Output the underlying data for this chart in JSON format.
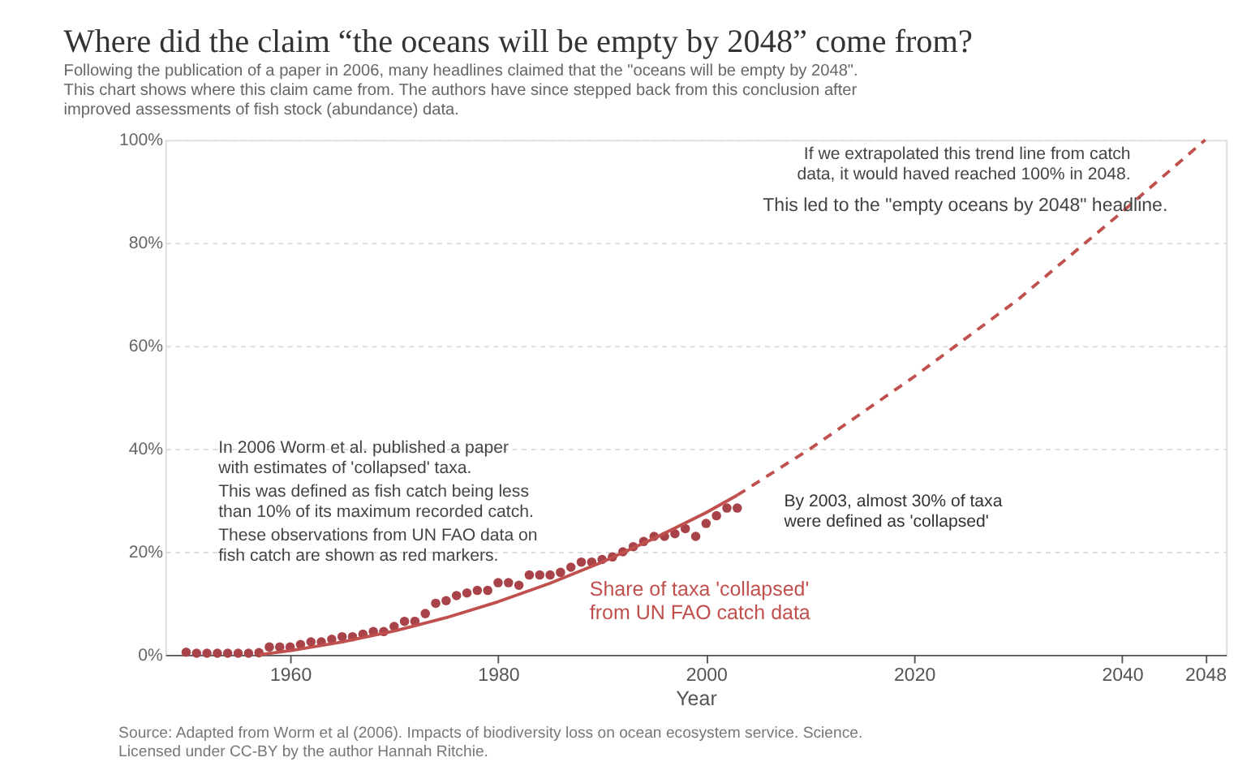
{
  "chart_data": {
    "type": "line",
    "title": "Where did the claim “the oceans will be empty by 2048” come from?",
    "subtitle": "Following the publication of a paper in 2006, many headlines claimed that the \"oceans will be empty by 2048\".\nThis chart shows where this claim came from. The authors have since stepped back from this conclusion after\nimproved assessments of fish stock (abundance) data.",
    "xlabel": "Year",
    "xlim": [
      1948,
      2050
    ],
    "xticks": [
      1960,
      1980,
      2000,
      2020,
      2040,
      2048
    ],
    "ylim": [
      0,
      100
    ],
    "yticks": [
      {
        "value": 0,
        "label": "0%"
      },
      {
        "value": 20,
        "label": "20%"
      },
      {
        "value": 40,
        "label": "40%"
      },
      {
        "value": 60,
        "label": "60%"
      },
      {
        "value": 80,
        "label": "80%"
      },
      {
        "value": 100,
        "label": "100%"
      }
    ],
    "grid": "y",
    "series": [
      {
        "type": "scatter",
        "marker": "circle",
        "color": "#a8434a",
        "x": [
          1950,
          1951,
          1952,
          1953,
          1954,
          1955,
          1956,
          1957,
          1958,
          1959,
          1960,
          1961,
          1962,
          1963,
          1964,
          1965,
          1966,
          1967,
          1968,
          1969,
          1970,
          1971,
          1972,
          1973,
          1974,
          1975,
          1976,
          1977,
          1978,
          1979,
          1980,
          1981,
          1982,
          1983,
          1984,
          1985,
          1986,
          1987,
          1988,
          1989,
          1990,
          1991,
          1992,
          1993,
          1994,
          1995,
          1996,
          1997,
          1998,
          1999,
          2000,
          2001,
          2002,
          2003
        ],
        "values": [
          0.5,
          0.3,
          0.3,
          0.3,
          0.3,
          0.3,
          0.3,
          0.4,
          1.5,
          1.5,
          1.5,
          2,
          2.5,
          2.5,
          3,
          3.5,
          3.5,
          4,
          4.5,
          4.5,
          5.5,
          6.5,
          6.5,
          8,
          10,
          10.5,
          11.5,
          12,
          12.5,
          12.5,
          14,
          14,
          13.5,
          15.5,
          15.5,
          15.5,
          16,
          17,
          18,
          18,
          18.5,
          19,
          20,
          21,
          22,
          23,
          23,
          23.5,
          24.5,
          23,
          25.5,
          27,
          28.5,
          28.5
        ]
      },
      {
        "name": "Share of taxa 'collapsed'\nfrom UN FAO catch data",
        "line_style": "solid",
        "color": "#c0504d",
        "x": [
          1957,
          1960,
          1965,
          1970,
          1975,
          1980,
          1985,
          1990,
          1995,
          2000,
          2003
        ],
        "values": [
          0,
          0.8,
          2.5,
          4.6,
          7.2,
          10.3,
          13.9,
          18,
          22.6,
          27.6,
          31
        ]
      },
      {
        "line_style": "dashed",
        "color": "#c0504d",
        "x": [
          2003,
          2010,
          2020,
          2030,
          2040,
          2048
        ],
        "values": [
          31,
          40,
          54,
          69,
          86,
          100
        ]
      }
    ],
    "annotations": [
      "If we extrapolated this trend line from catch\ndata, it would haved reached 100% in 2048.",
      "This led to the \"empty oceans by 2048\" headline.",
      "In 2006 Worm et al. published a paper\nwith estimates of 'collapsed' taxa.",
      "This was defined as fish catch being less\nthan 10% of its maximum recorded catch.",
      "These observations from UN FAO data on\nfish catch are shown as red markers.",
      {
        "text": "By 2003, almost 30% of taxa\nwere defined as 'collapsed'",
        "x": 2003,
        "y": 28.5
      },
      "Source: Adapted from Worm et al (2006). Impacts of biodiversity loss on ocean ecosystem service. Science.\nLicensed under CC-BY by the author Hannah Ritchie."
    ]
  }
}
